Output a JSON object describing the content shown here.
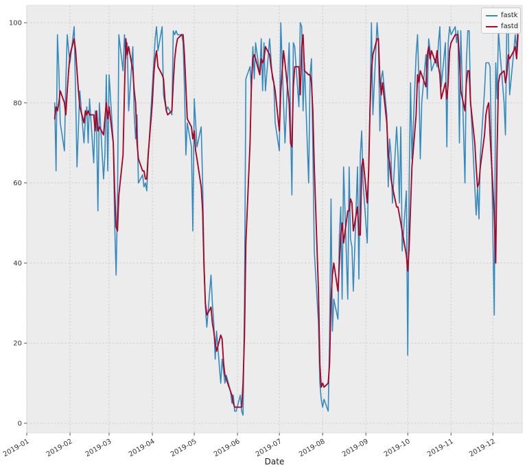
{
  "chart_data": {
    "type": "line",
    "title": "",
    "xlabel": "Date",
    "ylabel": "",
    "grid": true,
    "legend_position": "upper right",
    "colors": {
      "figure_background": "#ffffff",
      "plot_background": "#ececec",
      "grid": "#cfcfcf",
      "tick_label": "#333333",
      "fastk": "#348ABD",
      "fastd": "#A60628"
    },
    "ylim": [
      -2.4,
      104.3
    ],
    "xlim": [
      "2019-01-01",
      "2019-12-22"
    ],
    "y_ticks": [
      0,
      20,
      40,
      60,
      80,
      100
    ],
    "x_ticks": {
      "dates": [
        "2019-01-01",
        "2019-02-01",
        "2019-03-01",
        "2019-04-01",
        "2019-05-01",
        "2019-06-01",
        "2019-07-01",
        "2019-08-01",
        "2019-09-01",
        "2019-10-01",
        "2019-11-01",
        "2019-12-01"
      ],
      "labels": [
        "2019-01",
        "2019-02",
        "2019-03",
        "2019-04",
        "2019-05",
        "2019-06",
        "2019-07",
        "2019-08",
        "2019-09",
        "2019-10",
        "2019-11",
        "2019-12"
      ]
    },
    "dates": [
      "2019-01-21",
      "2019-01-22",
      "2019-01-23",
      "2019-01-24",
      "2019-01-25",
      "2019-01-28",
      "2019-01-29",
      "2019-01-30",
      "2019-01-31",
      "2019-02-01",
      "2019-02-04",
      "2019-02-05",
      "2019-02-06",
      "2019-02-07",
      "2019-02-08",
      "2019-02-11",
      "2019-02-12",
      "2019-02-13",
      "2019-02-14",
      "2019-02-15",
      "2019-02-18",
      "2019-02-19",
      "2019-02-20",
      "2019-02-21",
      "2019-02-22",
      "2019-02-25",
      "2019-02-26",
      "2019-02-27",
      "2019-02-28",
      "2019-03-01",
      "2019-03-04",
      "2019-03-05",
      "2019-03-06",
      "2019-03-07",
      "2019-03-08",
      "2019-03-11",
      "2019-03-12",
      "2019-03-13",
      "2019-03-14",
      "2019-03-15",
      "2019-03-18",
      "2019-03-19",
      "2019-03-20",
      "2019-03-21",
      "2019-03-22",
      "2019-03-25",
      "2019-03-26",
      "2019-03-27",
      "2019-03-28",
      "2019-03-29",
      "2019-04-01",
      "2019-04-02",
      "2019-04-03",
      "2019-04-04",
      "2019-04-05",
      "2019-04-08",
      "2019-04-09",
      "2019-04-10",
      "2019-04-11",
      "2019-04-12",
      "2019-04-15",
      "2019-04-16",
      "2019-04-17",
      "2019-04-18",
      "2019-04-19",
      "2019-04-22",
      "2019-04-23",
      "2019-04-24",
      "2019-04-25",
      "2019-04-26",
      "2019-04-29",
      "2019-04-30",
      "2019-05-01",
      "2019-05-02",
      "2019-05-03",
      "2019-05-06",
      "2019-05-07",
      "2019-05-08",
      "2019-05-09",
      "2019-05-10",
      "2019-05-13",
      "2019-05-14",
      "2019-05-15",
      "2019-05-16",
      "2019-05-17",
      "2019-05-20",
      "2019-05-21",
      "2019-05-22",
      "2019-05-23",
      "2019-05-24",
      "2019-05-27",
      "2019-05-28",
      "2019-05-29",
      "2019-05-30",
      "2019-05-31",
      "2019-06-03",
      "2019-06-04",
      "2019-06-05",
      "2019-06-06",
      "2019-06-07",
      "2019-06-10",
      "2019-06-11",
      "2019-06-12",
      "2019-06-13",
      "2019-06-14",
      "2019-06-17",
      "2019-06-18",
      "2019-06-19",
      "2019-06-20",
      "2019-06-21",
      "2019-06-24",
      "2019-06-25",
      "2019-06-26",
      "2019-06-27",
      "2019-06-28",
      "2019-07-01",
      "2019-07-02",
      "2019-07-03",
      "2019-07-04",
      "2019-07-05",
      "2019-07-08",
      "2019-07-09",
      "2019-07-10",
      "2019-07-11",
      "2019-07-12",
      "2019-07-15",
      "2019-07-16",
      "2019-07-17",
      "2019-07-18",
      "2019-07-19",
      "2019-07-22",
      "2019-07-23",
      "2019-07-24",
      "2019-07-25",
      "2019-07-26",
      "2019-07-29",
      "2019-07-30",
      "2019-07-31",
      "2019-08-01",
      "2019-08-02",
      "2019-08-05",
      "2019-08-06",
      "2019-08-07",
      "2019-08-08",
      "2019-08-09",
      "2019-08-12",
      "2019-08-13",
      "2019-08-14",
      "2019-08-15",
      "2019-08-16",
      "2019-08-19",
      "2019-08-20",
      "2019-08-21",
      "2019-08-22",
      "2019-08-23",
      "2019-08-26",
      "2019-08-27",
      "2019-08-28",
      "2019-08-29",
      "2019-08-30",
      "2019-09-02",
      "2019-09-03",
      "2019-09-04",
      "2019-09-05",
      "2019-09-06",
      "2019-09-09",
      "2019-09-10",
      "2019-09-11",
      "2019-09-12",
      "2019-09-13",
      "2019-09-16",
      "2019-09-17",
      "2019-09-18",
      "2019-09-19",
      "2019-09-20",
      "2019-09-23",
      "2019-09-24",
      "2019-09-25",
      "2019-09-26",
      "2019-09-27",
      "2019-09-30",
      "2019-10-01",
      "2019-10-02",
      "2019-10-03",
      "2019-10-04",
      "2019-10-07",
      "2019-10-08",
      "2019-10-09",
      "2019-10-10",
      "2019-10-11",
      "2019-10-14",
      "2019-10-15",
      "2019-10-16",
      "2019-10-17",
      "2019-10-18",
      "2019-10-21",
      "2019-10-22",
      "2019-10-23",
      "2019-10-24",
      "2019-10-25",
      "2019-10-28",
      "2019-10-29",
      "2019-10-30",
      "2019-10-31",
      "2019-11-01",
      "2019-11-04",
      "2019-11-05",
      "2019-11-06",
      "2019-11-07",
      "2019-11-08",
      "2019-11-11",
      "2019-11-12",
      "2019-11-13",
      "2019-11-14",
      "2019-11-15",
      "2019-11-18",
      "2019-11-19",
      "2019-11-20",
      "2019-11-21",
      "2019-11-22",
      "2019-11-25",
      "2019-11-26",
      "2019-11-27",
      "2019-11-28",
      "2019-11-29",
      "2019-12-02",
      "2019-12-03",
      "2019-12-04",
      "2019-12-05",
      "2019-12-06",
      "2019-12-09",
      "2019-12-10",
      "2019-12-11",
      "2019-12-12",
      "2019-12-13",
      "2019-12-16",
      "2019-12-17",
      "2019-12-18",
      "2019-12-19"
    ],
    "series": [
      {
        "name": "fastk",
        "color": "#348ABD",
        "line_width": 1.6,
        "values": [
          80,
          63,
          97,
          88,
          75,
          68,
          85,
          97,
          93,
          90,
          99,
          82,
          64,
          74,
          83,
          70,
          76,
          79,
          70,
          81,
          65,
          78,
          75,
          53,
          80,
          61,
          67,
          87,
          63,
          87,
          70,
          50,
          37,
          55,
          97,
          88,
          97,
          91,
          95,
          78,
          94,
          77,
          71,
          77,
          60,
          62,
          59,
          60,
          58,
          66,
          84,
          90,
          96,
          99,
          93,
          99,
          82,
          80,
          78,
          79,
          77,
          98,
          97,
          98,
          97,
          97,
          95,
          84,
          67,
          75,
          69,
          48,
          81,
          75,
          69,
          74,
          60,
          41,
          29,
          24,
          37,
          30,
          25,
          16,
          23,
          10,
          16,
          13,
          10,
          12,
          8,
          5,
          7,
          3,
          3,
          7,
          3,
          2,
          30,
          86,
          89,
          83,
          94,
          86,
          95,
          87,
          96,
          83,
          95,
          83,
          96,
          91,
          86,
          85,
          75,
          68,
          100,
          90,
          80,
          70,
          95,
          75,
          57,
          95,
          94,
          79,
          100,
          99,
          78,
          90,
          60,
          87,
          91,
          69,
          43,
          25,
          10,
          6,
          4,
          6,
          3,
          21,
          56,
          23,
          31,
          26,
          47,
          54,
          31,
          64,
          31,
          64,
          46,
          44,
          33,
          64,
          36,
          67,
          73,
          60,
          45,
          65,
          80,
          100,
          77,
          100,
          95,
          73,
          86,
          88,
          77,
          59,
          71,
          67,
          55,
          74,
          67,
          55,
          74,
          43,
          58,
          17,
          60,
          85,
          66,
          92,
          97,
          85,
          66,
          80,
          92,
          81,
          96,
          93,
          88,
          91,
          89,
          95,
          99,
          84,
          95,
          69,
          95,
          99,
          97,
          99,
          95,
          98,
          70,
          98,
          60,
          90,
          98,
          98,
          81,
          59,
          52,
          59,
          51,
          67,
          83,
          90,
          90,
          90,
          89,
          27,
          90,
          81,
          98,
          93,
          80,
          72,
          100,
          98,
          82,
          93,
          97,
          93,
          100
        ]
      },
      {
        "name": "fastd",
        "color": "#A60628",
        "line_width": 1.9,
        "values": [
          76,
          79,
          78,
          80,
          83,
          80,
          77,
          83,
          88,
          92,
          96,
          93,
          88,
          83,
          79,
          75,
          78,
          77,
          78,
          77,
          77,
          73,
          78,
          73,
          74,
          72,
          76,
          80,
          76,
          79,
          70,
          58,
          49,
          48,
          57,
          67,
          83,
          96,
          92,
          94,
          88,
          83,
          80,
          70,
          66,
          63,
          63,
          61,
          61,
          67,
          80,
          87,
          91,
          93,
          89,
          87,
          86,
          81,
          78,
          77,
          78,
          85,
          91,
          94,
          96,
          97,
          97,
          92,
          84,
          76,
          74,
          71,
          73,
          68,
          66,
          59,
          53,
          39,
          30,
          27,
          29,
          25,
          23,
          20,
          18,
          22,
          21,
          15,
          12,
          11,
          8,
          7,
          5,
          4,
          4,
          4,
          4,
          10,
          22,
          45,
          70,
          85,
          91,
          92,
          91,
          87,
          91,
          90,
          91,
          94,
          92,
          89,
          87,
          85,
          83,
          73,
          83,
          88,
          93,
          90,
          80,
          70,
          69,
          84,
          89,
          89,
          82,
          94,
          97,
          88,
          87,
          87,
          85,
          78,
          64,
          33,
          15,
          9,
          10,
          9,
          10,
          15,
          31,
          37,
          40,
          33,
          40,
          47,
          50,
          45,
          53,
          53,
          56,
          55,
          48,
          54,
          47,
          47,
          64,
          66,
          55,
          63,
          79,
          88,
          92,
          96,
          96,
          86,
          82,
          85,
          75,
          67,
          65,
          61,
          59,
          54,
          54,
          52,
          50,
          48,
          42,
          38,
          44,
          54,
          64,
          77,
          87,
          85,
          88,
          87,
          84,
          92,
          94,
          91,
          93,
          90,
          93,
          89,
          87,
          81,
          85,
          81,
          85,
          93,
          95,
          97,
          97,
          97,
          91,
          83,
          78,
          85,
          88,
          88,
          80,
          70,
          64,
          59,
          60,
          64,
          72,
          77,
          79,
          80,
          72,
          52,
          40,
          68,
          85,
          87,
          88,
          85,
          87,
          92,
          91,
          93,
          94,
          91,
          97
        ]
      }
    ]
  }
}
